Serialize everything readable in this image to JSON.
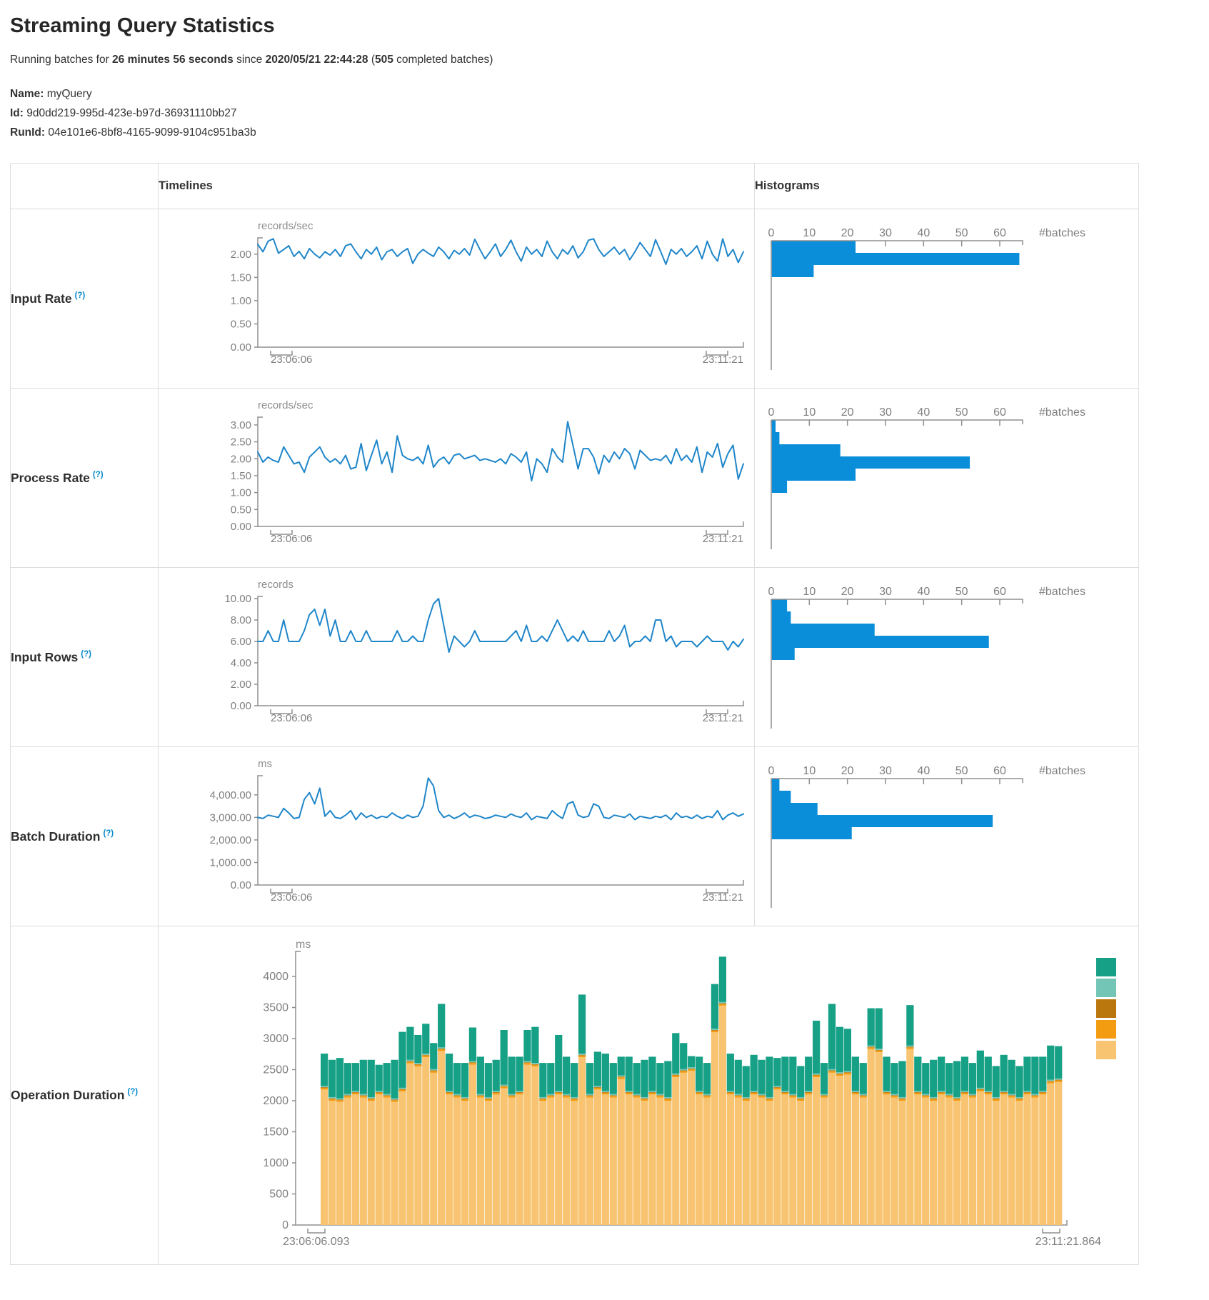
{
  "header": {
    "title": "Streaming Query Statistics"
  },
  "subtitle": {
    "prefix": "Running batches for ",
    "duration": "26 minutes 56 seconds",
    "middle": " since ",
    "start_time": "2020/05/21 22:44:28",
    "paren": " (",
    "batches_count": "505",
    "suffix": " completed batches)"
  },
  "meta": {
    "name_label": "Name:",
    "name_value": "myQuery",
    "id_label": "Id:",
    "id_value": "9d0dd219-995d-423e-b97d-36931110bb27",
    "runid_label": "RunId:",
    "runid_value": "04e101e6-8bf8-4165-9099-9104c951ba3b"
  },
  "table": {
    "timelines_header": "Timelines",
    "histograms_header": "Histograms"
  },
  "colors": {
    "accent_blue": "#0088cc",
    "line_blue": "#1f86c9",
    "bar_blue": "#0a8ed9",
    "axis_gray": "#8f8f8f",
    "tick_text": "#7f7f7f",
    "unit_text": "#8e8e8e",
    "border": "#dddddd"
  },
  "chart_data": [
    {
      "name": "input-rate",
      "label": "Input Rate",
      "help": "(?)",
      "type": "line",
      "unit": "records/sec",
      "x_start": "23:06:06",
      "x_end": "23:11:21",
      "yticks": [
        0,
        0.5,
        1,
        1.5,
        2
      ],
      "ytick_format": "fixed2",
      "ytop": 2.35,
      "values": [
        2.21,
        2.05,
        2.28,
        2.33,
        2.02,
        2.1,
        2.18,
        1.95,
        2.06,
        1.9,
        2.12,
        2.0,
        1.92,
        2.05,
        1.98,
        2.1,
        1.95,
        2.18,
        2.22,
        2.05,
        1.9,
        2.1,
        2.0,
        2.15,
        1.88,
        2.05,
        2.1,
        1.95,
        2.05,
        2.12,
        1.8,
        2.0,
        2.1,
        2.02,
        1.95,
        2.15,
        2.05,
        1.9,
        2.08,
        2.0,
        2.12,
        1.98,
        2.32,
        2.1,
        1.9,
        2.05,
        2.22,
        1.95,
        2.1,
        2.3,
        2.05,
        1.85,
        2.15,
        2.0,
        2.1,
        1.95,
        2.28,
        2.05,
        1.9,
        2.1,
        2.0,
        2.18,
        1.92,
        2.05,
        2.3,
        2.33,
        2.1,
        1.95,
        2.05,
        2.15,
        2.0,
        2.1,
        1.88,
        2.05,
        2.25,
        2.1,
        1.95,
        2.31,
        2.05,
        1.78,
        2.1,
        2.0,
        2.12,
        1.95,
        2.05,
        2.18,
        1.9,
        2.28,
        2.0,
        1.85,
        2.33,
        1.95,
        2.1,
        1.82,
        2.05
      ],
      "histogram": {
        "type": "bar",
        "orientation": "horizontal",
        "xticks": [
          0,
          10,
          20,
          30,
          40,
          50,
          60
        ],
        "xlabel": "#batches",
        "xmax": 66,
        "values": [
          22,
          65,
          11
        ]
      }
    },
    {
      "name": "process-rate",
      "label": "Process Rate",
      "help": "(?)",
      "type": "line",
      "unit": "records/sec",
      "x_start": "23:06:06",
      "x_end": "23:11:21",
      "yticks": [
        0,
        0.5,
        1,
        1.5,
        2,
        2.5,
        3
      ],
      "ytick_format": "fixed2",
      "ytop": 3.23,
      "values": [
        2.2,
        1.9,
        2.05,
        1.95,
        1.9,
        2.35,
        2.1,
        1.85,
        1.9,
        1.6,
        2.05,
        2.2,
        2.35,
        2.05,
        1.9,
        2.0,
        1.85,
        2.1,
        1.7,
        1.75,
        2.45,
        1.65,
        2.1,
        2.55,
        1.85,
        2.2,
        1.6,
        2.68,
        2.1,
        2.0,
        1.95,
        2.05,
        1.85,
        2.4,
        1.75,
        1.95,
        2.05,
        1.85,
        2.1,
        2.15,
        2.0,
        2.05,
        2.1,
        1.95,
        2.0,
        1.95,
        1.9,
        2.0,
        1.85,
        2.15,
        2.05,
        1.9,
        2.2,
        1.35,
        2.0,
        1.85,
        1.6,
        2.3,
        2.05,
        1.9,
        3.1,
        2.4,
        1.7,
        2.3,
        2.3,
        2.05,
        1.55,
        2.1,
        1.9,
        2.2,
        2.0,
        2.3,
        2.15,
        1.7,
        2.25,
        2.1,
        1.95,
        2.0,
        1.95,
        2.1,
        1.85,
        2.3,
        1.95,
        2.1,
        1.9,
        2.35,
        1.6,
        2.2,
        2.05,
        2.45,
        1.75,
        2.15,
        2.4,
        1.4,
        1.85
      ],
      "histogram": {
        "type": "bar",
        "orientation": "horizontal",
        "xticks": [
          0,
          10,
          20,
          30,
          40,
          50,
          60
        ],
        "xlabel": "#batches",
        "xmax": 66,
        "values": [
          1,
          2,
          18,
          52,
          22,
          4
        ]
      }
    },
    {
      "name": "input-rows",
      "label": "Input Rows",
      "help": "(?)",
      "type": "line",
      "unit": "records",
      "x_start": "23:06:06",
      "x_end": "23:11:21",
      "yticks": [
        0,
        2,
        4,
        6,
        8,
        10
      ],
      "ytick_format": "fixed2",
      "ytop": 10.2,
      "values": [
        6,
        6,
        7,
        6,
        6,
        8,
        6,
        6,
        6,
        7,
        8.5,
        9,
        7.5,
        9,
        6.5,
        8,
        6,
        6,
        7,
        6,
        6,
        7,
        6,
        6,
        6,
        6,
        6,
        7,
        6,
        6,
        6.5,
        6,
        6,
        8,
        9.5,
        10,
        7.5,
        5,
        6.5,
        6,
        5.5,
        6,
        7,
        6,
        6,
        6,
        6,
        6,
        6,
        6.5,
        7,
        6,
        7.5,
        6,
        6,
        6.5,
        6,
        7,
        8,
        7,
        6,
        6.5,
        6,
        7,
        6,
        6,
        6,
        6,
        7,
        6,
        6.5,
        7.5,
        5.5,
        6,
        6,
        6.5,
        6,
        8,
        8,
        6,
        6.5,
        5.5,
        6,
        6,
        6,
        5.5,
        6,
        6.5,
        6,
        6,
        6,
        5.2,
        6,
        5.5,
        6.2
      ],
      "histogram": {
        "type": "bar",
        "orientation": "horizontal",
        "xticks": [
          0,
          10,
          20,
          30,
          40,
          50,
          60
        ],
        "xlabel": "#batches",
        "xmax": 66,
        "values": [
          4,
          5,
          27,
          57,
          6
        ]
      }
    },
    {
      "name": "batch-duration",
      "label": "Batch Duration",
      "help": "(?)",
      "type": "line",
      "unit": "ms",
      "x_start": "23:06:06",
      "x_end": "23:11:21",
      "yticks": [
        0,
        1000,
        2000,
        3000,
        4000
      ],
      "ytick_format": "comma2",
      "ytop": 4850,
      "values": [
        3000,
        2950,
        3100,
        3050,
        3000,
        3400,
        3200,
        2950,
        3000,
        3800,
        4100,
        3600,
        4300,
        3050,
        3300,
        3000,
        2950,
        3100,
        3300,
        2900,
        3200,
        3000,
        3100,
        2950,
        3050,
        3000,
        3200,
        3050,
        2950,
        3100,
        3000,
        3050,
        3500,
        4750,
        4400,
        3300,
        3000,
        3100,
        2950,
        3050,
        3200,
        3000,
        3100,
        3050,
        2950,
        3000,
        3100,
        3050,
        3000,
        3150,
        3050,
        3000,
        3200,
        2900,
        3050,
        3000,
        2950,
        3300,
        3100,
        2950,
        3600,
        3700,
        3100,
        3000,
        3050,
        3600,
        3500,
        3000,
        2950,
        3100,
        3050,
        3000,
        3150,
        2900,
        3050,
        3000,
        2950,
        3050,
        3000,
        3100,
        2900,
        3200,
        3000,
        3050,
        2950,
        3100,
        2950,
        3050,
        3000,
        3300,
        2900,
        3100,
        3200,
        3050,
        3150
      ],
      "histogram": {
        "type": "bar",
        "orientation": "horizontal",
        "xticks": [
          0,
          10,
          20,
          30,
          40,
          50,
          60
        ],
        "xlabel": "#batches",
        "xmax": 66,
        "values": [
          2,
          5,
          12,
          58,
          21
        ]
      }
    },
    {
      "name": "operation-duration",
      "label": "Operation Duration",
      "help": "(?)",
      "type": "stacked-bar",
      "unit": "ms",
      "x_start": "23:06:06.093",
      "x_end": "23:11:21.864",
      "yticks": [
        0,
        500,
        1000,
        1500,
        2000,
        2500,
        3000,
        3500,
        4000
      ],
      "ytick_format": "int",
      "ytop": 4400,
      "legend_colors": [
        "#16A085",
        "#73C6B6",
        "#B9770E",
        "#F39C12",
        "#F8C471"
      ],
      "series": [
        {
          "name": "bottom-light-orange",
          "color": "#F8C471",
          "values": [
            2180,
            2000,
            1980,
            2050,
            2100,
            2050,
            2000,
            2100,
            2050,
            1980,
            2150,
            2600,
            2550,
            2700,
            2450,
            2800,
            2100,
            2050,
            2000,
            2580,
            2050,
            2000,
            2100,
            2200,
            2050,
            2100,
            2580,
            2550,
            2000,
            2050,
            2100,
            2050,
            2000,
            2700,
            2050,
            2180,
            2100,
            2050,
            2350,
            2100,
            2050,
            2000,
            2100,
            2050,
            2000,
            2380,
            2450,
            2480,
            2100,
            2050,
            3100,
            3530,
            2100,
            2050,
            2000,
            2100,
            2050,
            2000,
            2180,
            2100,
            2050,
            2000,
            2100,
            2380,
            2050,
            2450,
            2400,
            2420,
            2100,
            2050,
            2830,
            2780,
            2100,
            2050,
            2000,
            2830,
            2100,
            2050,
            2000,
            2100,
            2050,
            2000,
            2100,
            2050,
            2150,
            2100,
            2000,
            2100,
            2050,
            2000,
            2100,
            2050,
            2100,
            2280,
            2300
          ]
        },
        {
          "name": "orange-sliver",
          "color": "#F39C12",
          "values": 28
        },
        {
          "name": "dark-yellow-sliver",
          "color": "#B9770E",
          "values": 10
        },
        {
          "name": "light-green-sliver",
          "color": "#73C6B6",
          "values": 20
        },
        {
          "name": "top-green",
          "color": "#16A085",
          "values": [
            520,
            600,
            650,
            500,
            450,
            550,
            600,
            420,
            500,
            620,
            900,
            530,
            450,
            480,
            420,
            700,
            600,
            500,
            550,
            540,
            600,
            550,
            500,
            880,
            600,
            550,
            500,
            580,
            550,
            500,
            900,
            600,
            550,
            950,
            500,
            550,
            600,
            500,
            300,
            550,
            500,
            600,
            550,
            500,
            580,
            650,
            420,
            180,
            550,
            500,
            720,
            730,
            600,
            550,
            500,
            580,
            550,
            650,
            450,
            550,
            600,
            500,
            550,
            850,
            500,
            1050,
            730,
            680,
            550,
            500,
            600,
            650,
            550,
            500,
            580,
            650,
            550,
            500,
            600,
            550,
            500,
            580,
            550,
            500,
            600,
            550,
            500,
            580,
            550,
            500,
            550,
            600,
            550,
            550,
            520
          ]
        }
      ]
    }
  ]
}
